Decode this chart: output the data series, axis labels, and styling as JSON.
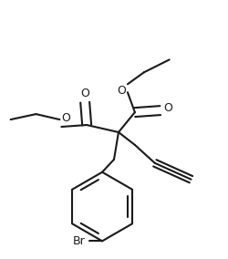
{
  "bg_color": "#ffffff",
  "line_color": "#1a1a1a",
  "line_width": 1.5,
  "figsize": [
    2.51,
    2.84
  ],
  "dpi": 100,
  "label_Br": "Br",
  "label_O": "O"
}
